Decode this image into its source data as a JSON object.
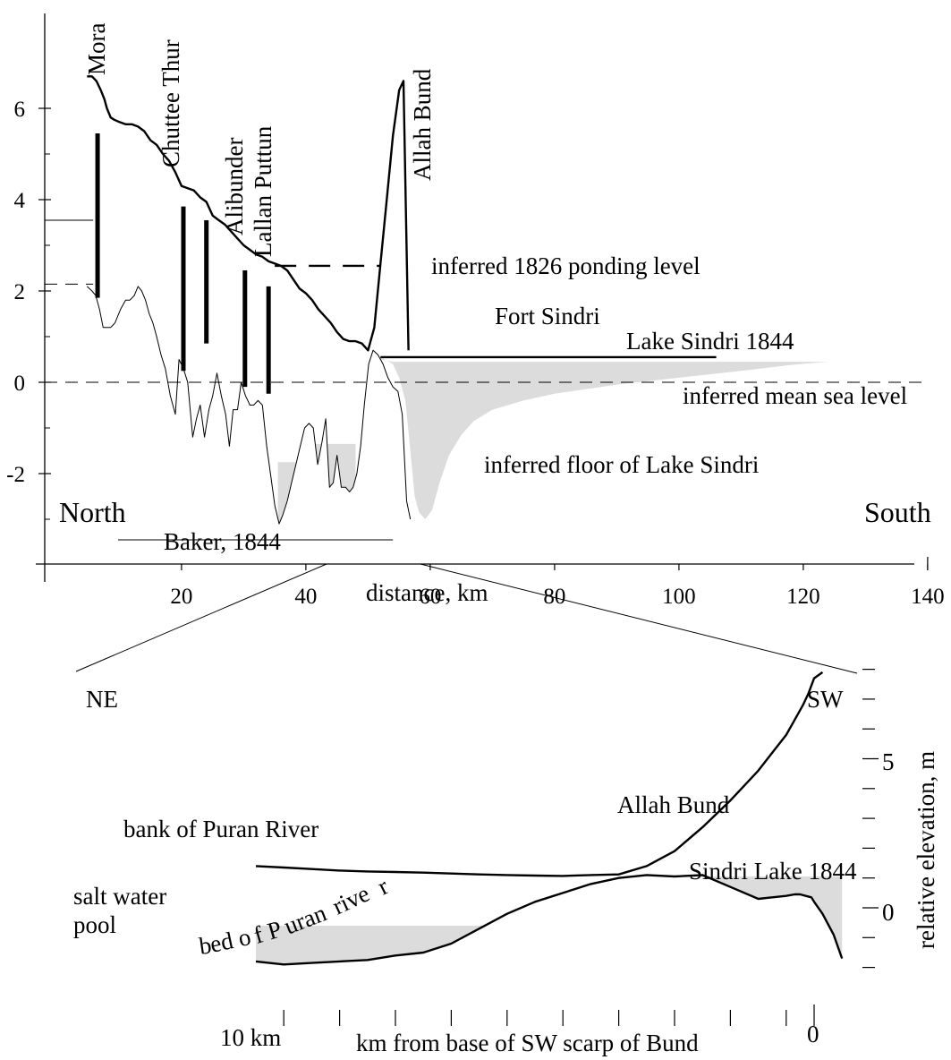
{
  "chart_data": [
    {
      "type": "line",
      "title": "",
      "xlabel": "distance, km",
      "ylabel": "",
      "xlim": [
        -2,
        140
      ],
      "ylim": [
        -4,
        7.5
      ],
      "x_ticks": [
        20,
        40,
        60,
        80,
        100,
        120,
        140
      ],
      "y_ticks": [
        -2,
        0,
        2,
        4,
        6
      ],
      "grid": false,
      "direction_labels": {
        "left": "North",
        "right": "South"
      },
      "series": [
        {
          "name": "",
          "role": "upper-profile",
          "x": [
            4.8,
            5.6,
            6.3,
            7.0,
            7.6,
            8.0,
            8.6,
            9.2,
            10.0,
            11.0,
            12.0,
            13.0,
            14.0,
            15.0,
            16.0,
            17.0,
            18.0,
            19.0,
            20.0,
            21.0,
            22.0,
            23.0,
            24.0,
            25.0,
            26.0,
            27.0,
            28.0,
            29.0,
            30.0,
            31.0,
            32.0,
            33.0,
            34.0,
            35.0,
            36.0,
            37.0,
            38.0,
            39.0,
            40.0,
            41.0,
            42.0,
            43.0,
            44.0,
            45.0,
            46.0,
            47.0,
            48.0,
            49.0,
            50.0,
            51.0,
            52.0,
            53.0,
            54.0,
            55.0,
            55.7,
            56.5
          ],
          "y": [
            6.7,
            6.7,
            6.6,
            6.4,
            6.2,
            6.0,
            5.8,
            5.75,
            5.7,
            5.65,
            5.65,
            5.6,
            5.5,
            5.3,
            5.2,
            5.0,
            4.85,
            4.6,
            4.3,
            4.25,
            4.2,
            4.05,
            3.95,
            3.65,
            3.55,
            3.45,
            3.3,
            3.15,
            3.0,
            2.9,
            2.8,
            2.75,
            2.65,
            2.6,
            2.55,
            2.45,
            2.25,
            2.05,
            1.95,
            1.8,
            1.6,
            1.45,
            1.3,
            1.1,
            0.95,
            0.9,
            0.9,
            0.85,
            0.7,
            1.2,
            2.6,
            4.0,
            5.4,
            6.4,
            6.6,
            0.7
          ]
        },
        {
          "name": "",
          "role": "lower-profile",
          "x": [
            4.8,
            5.6,
            6.2,
            6.8,
            7.4,
            8.0,
            8.6,
            9.3,
            10.2,
            11.0,
            11.7,
            12.4,
            13.0,
            13.6,
            14.2,
            14.8,
            15.4,
            16.0,
            16.7,
            17.4,
            18.2,
            19.0,
            19.6,
            20.3,
            21.0,
            21.8,
            22.4,
            23.0,
            23.7,
            24.4,
            25.0,
            25.7,
            26.4,
            27.1,
            27.7,
            28.3,
            29.0,
            29.6,
            30.3,
            31.0,
            31.6,
            32.3,
            33.0,
            33.7,
            34.3,
            35.0,
            35.7,
            36.3,
            37.0,
            37.7,
            38.4,
            39.1,
            39.8,
            40.5,
            41.2,
            41.9,
            42.6,
            43.2,
            43.8,
            44.4,
            45.0,
            45.7,
            46.4,
            47.0,
            47.6,
            48.2,
            48.8,
            49.4,
            50.1,
            50.8,
            51.6,
            52.4,
            53.2,
            54.0,
            54.8,
            55.5,
            56.2,
            56.8
          ],
          "y": [
            2.1,
            2.0,
            1.9,
            1.6,
            1.2,
            1.2,
            1.2,
            1.3,
            1.6,
            1.8,
            1.8,
            1.9,
            2.1,
            2.0,
            1.8,
            1.5,
            1.3,
            1.0,
            0.6,
            0.3,
            -0.3,
            -0.7,
            0.5,
            0.3,
            0.0,
            -1.2,
            -0.8,
            -0.5,
            -1.2,
            -0.6,
            -0.3,
            0.2,
            -0.3,
            -0.7,
            -1.4,
            -0.6,
            -0.6,
            0.0,
            -0.3,
            -0.5,
            -0.5,
            -0.4,
            -0.5,
            -1.4,
            -2.0,
            -2.7,
            -3.1,
            -2.9,
            -2.6,
            -2.2,
            -1.8,
            -1.4,
            -1.0,
            -0.9,
            -1.0,
            -1.8,
            -1.3,
            -0.8,
            -2.3,
            -2.2,
            -1.6,
            -2.3,
            -2.3,
            -2.4,
            -2.3,
            -2.0,
            -1.4,
            -0.5,
            0.4,
            0.7,
            0.6,
            0.4,
            0.1,
            -0.1,
            -0.2,
            -0.7,
            -2.6,
            -3.0
          ]
        }
      ],
      "vertical_bars": [
        {
          "x": 6.5,
          "y_low": 1.85,
          "y_high": 5.45
        },
        {
          "x": 20.3,
          "y_low": 0.25,
          "y_high": 3.85
        },
        {
          "x": 24.0,
          "y_low": 0.85,
          "y_high": 3.55
        },
        {
          "x": 30.2,
          "y_low": -0.1,
          "y_high": 2.45
        },
        {
          "x": 34.0,
          "y_low": -0.25,
          "y_high": 2.1
        }
      ],
      "site_labels": [
        {
          "text": "Mora",
          "x": 8.0,
          "y": 6.8
        },
        {
          "text": "Chuttee Thur",
          "x": 21.5,
          "y": 4.8
        },
        {
          "text": "Alibunder",
          "x": 32.3,
          "y": 3.25
        },
        {
          "text": "Lallan Puttun",
          "x": 36.5,
          "y": 2.8
        },
        {
          "text": "Allah Bund",
          "x": 63.2,
          "y": 4.5
        }
      ],
      "reference_lines": [
        {
          "label": "inferred 1826 ponding level",
          "y": 2.55,
          "x_from": 35.0,
          "x_to": 52.0,
          "style": "dashed"
        },
        {
          "label": "inferred mean sea level",
          "y": 0,
          "x_from": -2,
          "x_to": 140,
          "style": "dashed"
        },
        {
          "label": "Lake Sindri 1844",
          "y": 0.55,
          "x_from": 52.0,
          "x_to": 106.0,
          "style": "solid"
        },
        {
          "label": "Baker, 1844",
          "y": -3.45,
          "x_from": 9.8,
          "x_to": 54.0,
          "style": "solid"
        },
        {
          "label": "",
          "y": 3.55,
          "x_from": -2,
          "x_to": 5.8,
          "style": "solid"
        },
        {
          "label": "",
          "y": 2.15,
          "x_from": -2,
          "x_to": 5.8,
          "style": "dashed"
        }
      ],
      "annotations": [
        {
          "text": "inferred 1826 ponding level"
        },
        {
          "text": "Fort Sindri"
        },
        {
          "text": "Lake Sindri 1844"
        },
        {
          "text": "inferred mean sea level"
        },
        {
          "text": "inferred floor of Lake Sindri"
        },
        {
          "text": "Baker, 1844"
        }
      ],
      "shaded_areas": [
        {
          "role": "inferred floor of Lake Sindri",
          "x": [
            52.0,
            54.0,
            55.0,
            56.0,
            56.8,
            57.5,
            58.2,
            59.2,
            60.3,
            61.5,
            63.0,
            65.0,
            67.0,
            70.0,
            75.0,
            80.0,
            90.0,
            100.0,
            110.0,
            118.0,
            124.0
          ],
          "y_top": [
            0.5,
            0.45,
            0.45,
            0.45,
            0.45,
            0.45,
            0.45,
            0.45,
            0.45,
            0.45,
            0.45,
            0.45,
            0.45,
            0.45,
            0.45,
            0.45,
            0.45,
            0.45,
            0.45,
            0.45,
            0.45
          ],
          "y_bottom": [
            0.55,
            0.4,
            0.1,
            -0.4,
            -1.5,
            -2.5,
            -2.85,
            -3.0,
            -2.8,
            -2.2,
            -1.6,
            -1.15,
            -0.85,
            -0.6,
            -0.4,
            -0.25,
            -0.05,
            0.1,
            0.25,
            0.38,
            0.45
          ]
        },
        {
          "role": "ponded",
          "x_from": 35.5,
          "x_to": 40.5,
          "y": -1.75
        },
        {
          "role": "ponded",
          "x_from": 40.5,
          "x_to": 48.0,
          "y": -1.35
        }
      ]
    },
    {
      "type": "line",
      "title": "",
      "xlabel": "km from base of SW scarp of Bund",
      "ylabel": "relative elevation, m",
      "x_tick_labels": [
        {
          "text": "10 km",
          "x": 10
        },
        {
          "text": "0",
          "x": 0
        }
      ],
      "y_tick_labels": [
        {
          "text": "5",
          "y": 5
        },
        {
          "text": "0",
          "y": 0
        }
      ],
      "direction_labels": {
        "left": "NE",
        "right": "SW"
      },
      "grid": false,
      "series": [
        {
          "name": "bank of Puran River",
          "x": [
            20.0,
            19.0,
            18.0,
            17.0,
            16.0,
            15.0,
            14.0,
            13.0,
            12.0,
            11.0,
            10.0,
            9.0,
            8.0,
            7.0,
            6.0,
            5.0,
            4.0,
            3.0,
            2.0,
            1.5,
            1.0,
            0.7,
            0.4,
            0.2,
            0.0,
            -0.3
          ],
          "y": [
            1.4,
            1.35,
            1.3,
            1.25,
            1.22,
            1.2,
            1.18,
            1.15,
            1.12,
            1.1,
            1.08,
            1.07,
            1.1,
            1.12,
            1.4,
            1.9,
            2.7,
            3.6,
            4.6,
            5.2,
            5.8,
            6.3,
            6.8,
            7.2,
            7.7,
            7.9
          ]
        },
        {
          "name": "bed of Puran river",
          "x": [
            20.0,
            19.0,
            18.0,
            17.0,
            16.0,
            15.0,
            14.0,
            13.0,
            12.0,
            11.0,
            10.0,
            9.0,
            8.0,
            7.0,
            6.0,
            5.0,
            4.0,
            3.0,
            2.0,
            1.5,
            1.0,
            0.7,
            0.5,
            0.3,
            0.1,
            0.0,
            -0.3,
            -0.7,
            -1.0
          ],
          "y": [
            -1.8,
            -1.9,
            -1.85,
            -1.8,
            -1.75,
            -1.6,
            -1.5,
            -1.2,
            -0.7,
            -0.2,
            0.2,
            0.5,
            0.8,
            1.0,
            1.1,
            1.05,
            1.1,
            0.7,
            0.3,
            0.35,
            0.4,
            0.45,
            0.45,
            0.4,
            0.35,
            0.2,
            -0.2,
            -0.9,
            -1.7
          ]
        }
      ],
      "annotations": [
        {
          "text": "bank of Puran River"
        },
        {
          "text": "bed of Puran river"
        },
        {
          "text": "salt water pool"
        },
        {
          "text": "Allah Bund"
        },
        {
          "text": "Sindri Lake 1844"
        }
      ],
      "shaded_areas": [
        {
          "role": "salt water pool",
          "x_from": 20.0,
          "x_to": 11.5,
          "y": -0.6
        },
        {
          "role": "Sindri Lake 1844",
          "x_from": 7.0,
          "x_to": -1.0,
          "y": 1.05
        }
      ]
    }
  ],
  "labels": {
    "north": "North",
    "south": "South",
    "ne": "NE",
    "sw": "SW",
    "mora": "Mora",
    "chuttee": "Chuttee Thur",
    "alibunder": "Alibunder",
    "lallan": "Lallan Puttun",
    "allah_top": "Allah Bund",
    "ponding": "inferred 1826 ponding level",
    "fort": "Fort Sindri",
    "lake1844": "Lake Sindri 1844",
    "msl": "inferred mean sea level",
    "floor": "inferred floor of Lake Sindri",
    "baker": "Baker, 1844",
    "xlabel_top": "distance, km",
    "bank": "bank of Puran River",
    "salt1": "salt water",
    "salt2": "pool",
    "allah_bottom": "Allah Bund",
    "sindri_bottom": "Sindri Lake 1844",
    "bed_a": "b",
    "bed_b": "ed o",
    "bed_c": "f P",
    "bed_d": "uran",
    "bed_e": " rive",
    "bed_f": "r",
    "xlabel_bottom": "km from base of SW scarp of Bund",
    "ylabel_bottom": "relative elevation, m",
    "tick_10km": "10 km",
    "tick_0_x": "0",
    "tick_5_y": "5",
    "tick_0_y": "0"
  },
  "colors": {
    "ink": "#000000",
    "shade": "#dcdcdc"
  }
}
